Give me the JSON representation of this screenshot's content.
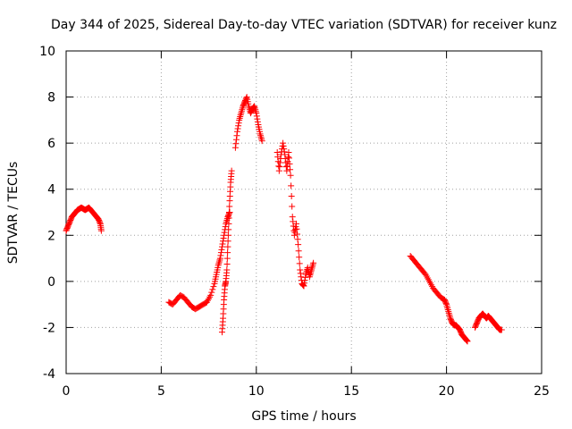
{
  "chart_data": {
    "type": "scatter",
    "title": "Day 344 of 2025, Sidereal Day-to-day VTEC variation (SDTVAR) for receiver kunz",
    "xlabel": "GPS time / hours",
    "ylabel": "SDTVAR / TECUs",
    "xlim": [
      0,
      25
    ],
    "ylim": [
      -4,
      10
    ],
    "xticks": [
      0,
      5,
      10,
      15,
      20,
      25
    ],
    "yticks": [
      -4,
      -2,
      0,
      2,
      4,
      6,
      8,
      10
    ],
    "xtick_labels": [
      "0",
      "5",
      "10",
      "15",
      "20",
      "25"
    ],
    "ytick_labels": [
      "-4",
      "-2",
      "0",
      "2",
      "4",
      "6",
      "8",
      "10"
    ],
    "grid": true,
    "marker": "+",
    "color": "#ff0000",
    "series": [
      {
        "name": "segment-1",
        "x": [
          0.0,
          0.1,
          0.2,
          0.3,
          0.4,
          0.5,
          0.6,
          0.7,
          0.8,
          0.9,
          1.0,
          1.1,
          1.2,
          1.3,
          1.4,
          1.5,
          1.6,
          1.7,
          1.8,
          1.85
        ],
        "y": [
          2.2,
          2.4,
          2.6,
          2.8,
          2.9,
          3.0,
          3.1,
          3.15,
          3.2,
          3.15,
          3.1,
          3.15,
          3.2,
          3.1,
          3.0,
          2.9,
          2.8,
          2.7,
          2.5,
          2.2
        ]
      },
      {
        "name": "segment-2",
        "x": [
          5.4,
          5.6,
          5.8,
          6.0,
          6.2,
          6.4,
          6.6,
          6.8,
          7.0,
          7.2,
          7.4,
          7.6,
          7.8,
          7.9,
          8.0,
          8.1,
          8.2,
          8.3,
          8.4,
          8.5,
          8.6
        ],
        "y": [
          -0.9,
          -1.0,
          -0.8,
          -0.6,
          -0.7,
          -0.9,
          -1.1,
          -1.2,
          -1.1,
          -1.0,
          -0.9,
          -0.6,
          -0.1,
          0.3,
          0.7,
          1.0,
          1.5,
          2.0,
          2.5,
          2.8,
          3.0
        ]
      },
      {
        "name": "segment-3",
        "x": [
          8.2,
          8.25,
          8.3,
          8.35,
          8.4,
          8.45,
          8.5,
          8.55,
          8.6,
          8.65,
          8.7
        ],
        "y": [
          -2.2,
          -1.6,
          -0.8,
          -0.2,
          0.0,
          0.5,
          1.5,
          2.5,
          3.5,
          4.3,
          4.8
        ]
      },
      {
        "name": "segment-4",
        "x": [
          8.9,
          9.0,
          9.1,
          9.2,
          9.3,
          9.4,
          9.5,
          9.6,
          9.7,
          9.8,
          9.9,
          10.0,
          10.1,
          10.2,
          10.3
        ],
        "y": [
          5.8,
          6.5,
          7.0,
          7.3,
          7.6,
          7.8,
          8.0,
          7.6,
          7.3,
          7.5,
          7.6,
          7.3,
          6.8,
          6.4,
          6.1
        ]
      },
      {
        "name": "segment-5",
        "x": [
          11.1,
          11.2,
          11.3,
          11.4,
          11.5,
          11.6,
          11.7,
          11.8,
          11.9,
          12.0,
          12.1,
          12.2,
          12.3,
          12.4,
          12.5,
          12.6,
          12.7,
          12.8,
          12.9,
          13.0
        ],
        "y": [
          5.6,
          4.8,
          5.5,
          6.0,
          5.5,
          4.8,
          5.6,
          4.6,
          2.8,
          2.0,
          2.5,
          1.6,
          0.5,
          -0.1,
          -0.2,
          0.3,
          0.6,
          0.2,
          0.5,
          0.8
        ]
      },
      {
        "name": "segment-6",
        "x": [
          18.1,
          18.3,
          18.5,
          18.7,
          18.9,
          19.1,
          19.3,
          19.5,
          19.7,
          19.9,
          20.0,
          20.1,
          20.2,
          20.3,
          20.4,
          20.5,
          20.6,
          20.7,
          20.8,
          20.9,
          21.0,
          21.1
        ],
        "y": [
          1.1,
          0.9,
          0.7,
          0.5,
          0.3,
          0.0,
          -0.3,
          -0.5,
          -0.7,
          -0.8,
          -1.0,
          -1.3,
          -1.6,
          -1.8,
          -1.9,
          -1.9,
          -2.0,
          -2.1,
          -2.3,
          -2.4,
          -2.5,
          -2.6
        ]
      },
      {
        "name": "segment-7",
        "x": [
          21.5,
          21.6,
          21.7,
          21.8,
          21.9,
          22.0,
          22.1,
          22.2,
          22.3,
          22.4,
          22.5,
          22.6,
          22.7,
          22.8,
          22.9
        ],
        "y": [
          -2.0,
          -1.8,
          -1.6,
          -1.5,
          -1.4,
          -1.5,
          -1.6,
          -1.5,
          -1.6,
          -1.7,
          -1.8,
          -1.9,
          -2.0,
          -2.1,
          -2.1
        ]
      }
    ]
  }
}
